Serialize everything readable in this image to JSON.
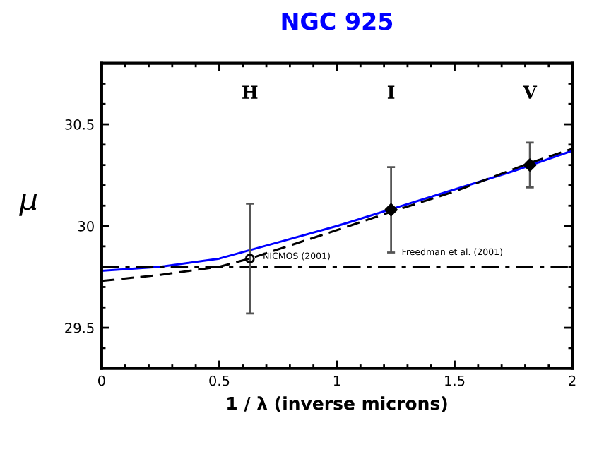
{
  "chart_data": {
    "type": "line",
    "title": "NGC 925",
    "xlabel": "1 / λ (inverse microns)",
    "ylabel": "μ",
    "xlim": [
      0,
      2
    ],
    "ylim": [
      29.3,
      30.8
    ],
    "xticks": [
      0,
      0.5,
      1,
      1.5,
      2
    ],
    "yticks": [
      29.5,
      30,
      30.5
    ],
    "grid": false,
    "legend": false,
    "series": [
      {
        "color": "#0000ff",
        "line_style": "solid",
        "x": [
          0,
          0.25,
          0.5,
          0.75,
          1.0,
          1.25,
          1.5,
          1.75,
          2.0
        ],
        "values": [
          29.78,
          29.8,
          29.84,
          29.92,
          30.0,
          30.09,
          30.18,
          30.27,
          30.37
        ]
      },
      {
        "color": "#000000",
        "line_style": "dashed",
        "x": [
          0,
          0.25,
          0.5,
          0.63,
          1.0,
          1.23,
          1.5,
          1.82,
          2.0
        ],
        "values": [
          29.73,
          29.76,
          29.8,
          29.84,
          29.98,
          30.07,
          30.17,
          30.31,
          30.38
        ]
      },
      {
        "type": "scatter",
        "color": "#000000",
        "marker": "circle",
        "x": [
          0.63
        ],
        "values": [
          29.84
        ],
        "errors": [
          [
            29.57,
            30.11
          ]
        ]
      },
      {
        "type": "scatter",
        "color": "#000000",
        "marker": "diamond",
        "x": [
          1.23,
          1.82
        ],
        "values": [
          30.08,
          30.3
        ],
        "errors": [
          [
            29.87,
            30.29
          ],
          [
            30.19,
            30.41
          ]
        ]
      }
    ],
    "ref_lines": [
      {
        "axis": "y",
        "value": 29.8,
        "color": "#000000",
        "line_style": "dashdot"
      }
    ],
    "annotations": [
      "H",
      "I",
      "V",
      {
        "text": "NICMOS (2001)",
        "x": 0.66,
        "y": 29.84
      },
      {
        "text": "Freedman et al. (2001)",
        "x": 1.25,
        "y": 29.86
      }
    ]
  }
}
